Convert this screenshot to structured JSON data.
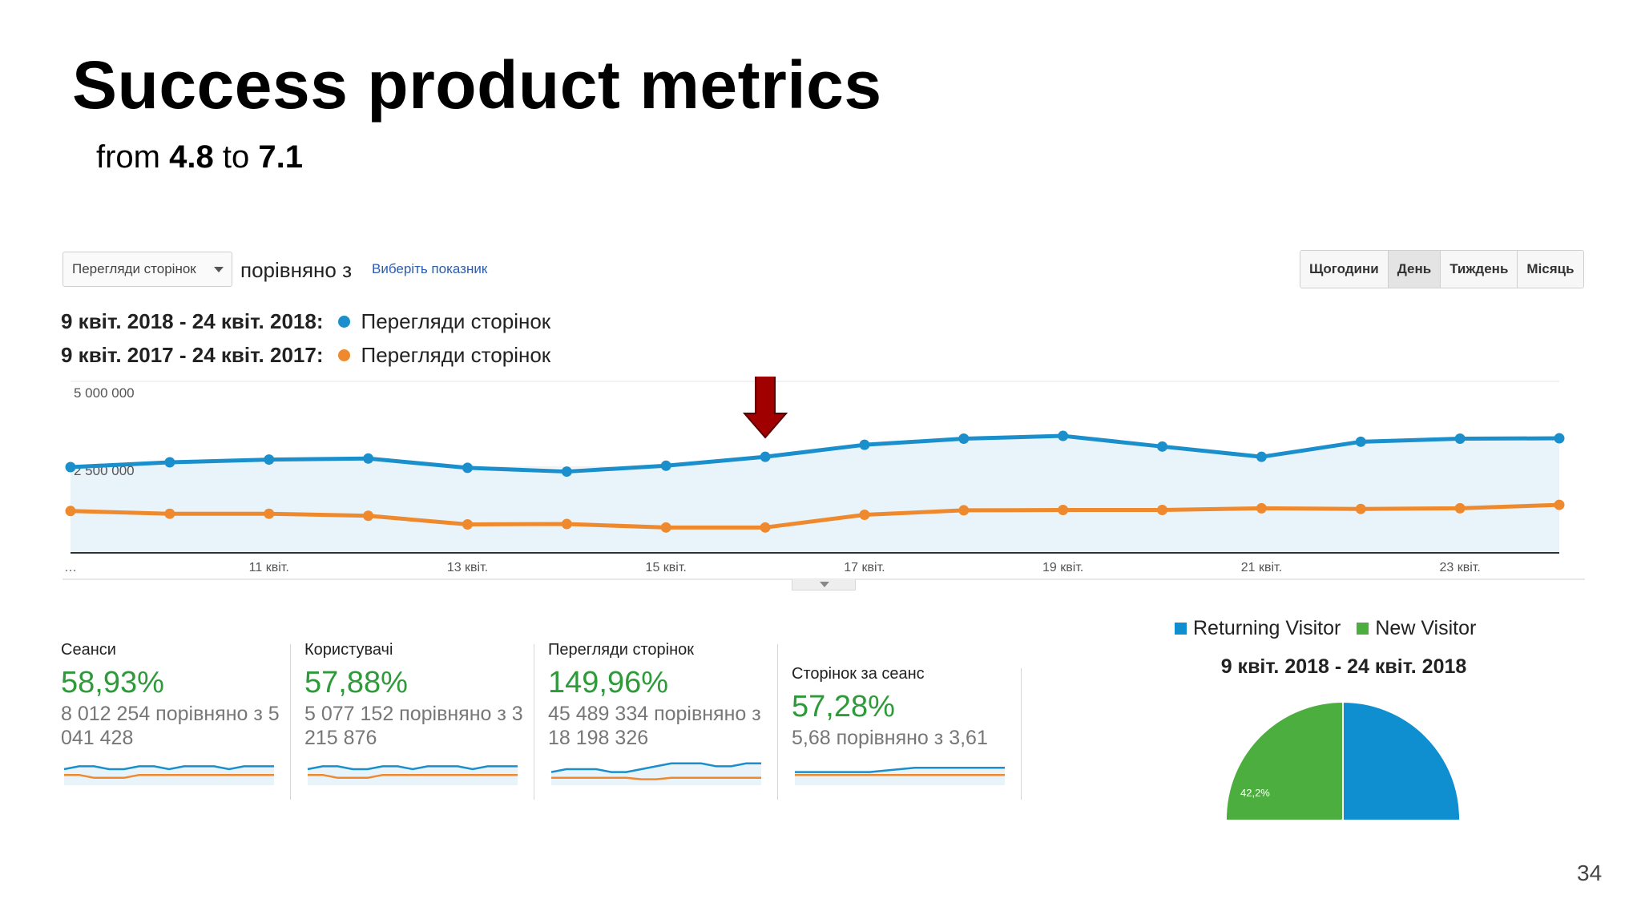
{
  "slide": {
    "title": "Success product metrics",
    "subtitle_from": "from",
    "subtitle_a": "4.8",
    "subtitle_to": "to",
    "subtitle_b": "7.1",
    "page_number": "34"
  },
  "toolbar": {
    "metric_select": "Перегляди сторінок",
    "compare_label": "порівняно з",
    "choose_metric_link": "Виберіть показник",
    "periods": [
      "Щогодини",
      "День",
      "Тиждень",
      "Місяць"
    ],
    "active_period": "День"
  },
  "legend": {
    "current_range": "9 квіт. 2018 - 24 квіт. 2018:",
    "current_name": "Перегляди сторінок",
    "previous_range": "9 квіт. 2017 - 24 квіт. 2017:",
    "previous_name": "Перегляди сторінок"
  },
  "colors": {
    "current": "#1a8fcb",
    "previous": "#ee8a2d",
    "area_fill": "#e9f3fa",
    "arrow": "#a00000",
    "positive_pct": "#2e9a3a",
    "new_visitor": "#4cae3f",
    "returning_visitor": "#0f8ed0"
  },
  "chart_data": {
    "type": "line",
    "x": [
      "9 квіт.",
      "10 квіт.",
      "11 квіт.",
      "12 квіт.",
      "13 квіт.",
      "14 квіт.",
      "15 квіт.",
      "16 квіт.",
      "17 квіт.",
      "18 квіт.",
      "19 квіт.",
      "20 квіт.",
      "21 квіт.",
      "22 квіт.",
      "23 квіт.",
      "24 квіт."
    ],
    "tick_labels": [
      "…",
      "11 квіт.",
      "13 квіт.",
      "15 квіт.",
      "17 квіт.",
      "19 квіт.",
      "21 квіт.",
      "23 квіт."
    ],
    "y_tick_labels": [
      "5 000 000",
      "2 500 000"
    ],
    "ylim": [
      0,
      5000000
    ],
    "series": [
      {
        "name": "9 квіт. 2018 - 24 квіт. 2018: Перегляди сторінок",
        "values": [
          2500000,
          2640000,
          2720000,
          2750000,
          2480000,
          2370000,
          2540000,
          2800000,
          3150000,
          3330000,
          3410000,
          3100000,
          2800000,
          3240000,
          3330000,
          3340000
        ]
      },
      {
        "name": "9 квіт. 2017 - 24 квіт. 2017: Перегляди сторінок",
        "values": [
          1220000,
          1140000,
          1140000,
          1080000,
          830000,
          840000,
          740000,
          740000,
          1110000,
          1240000,
          1250000,
          1250000,
          1300000,
          1280000,
          1300000,
          1400000
        ]
      }
    ],
    "area_under": "current",
    "grid": true,
    "annotation": "arrow pointing to 16 квіт."
  },
  "scorecards": [
    {
      "label": "Сеанси",
      "pct": "58,93%",
      "desc": "8 012 254 порівняно з 5 041 428",
      "spark_current": [
        5,
        6,
        6,
        5,
        5,
        6,
        6,
        5,
        6,
        6,
        6,
        5,
        6,
        6,
        6
      ],
      "spark_previous": [
        3,
        3,
        2,
        2,
        2,
        3,
        3,
        3,
        3,
        3,
        3,
        3,
        3,
        3,
        3
      ]
    },
    {
      "label": "Користувачі",
      "pct": "57,88%",
      "desc": "5 077 152 порівняно з 3 215 876",
      "spark_current": [
        5,
        6,
        6,
        5,
        5,
        6,
        6,
        5,
        6,
        6,
        6,
        5,
        6,
        6,
        6
      ],
      "spark_previous": [
        3,
        3,
        2,
        2,
        2,
        3,
        3,
        3,
        3,
        3,
        3,
        3,
        3,
        3,
        3
      ]
    },
    {
      "label": "Перегляди сторінок",
      "pct": "149,96%",
      "desc": "45 489 334 порівняно з 18 198 326",
      "spark_current": [
        4,
        5,
        5,
        5,
        4,
        4,
        5,
        6,
        7,
        7,
        7,
        6,
        6,
        7,
        7
      ],
      "spark_previous": [
        2,
        2,
        2,
        2,
        2,
        2,
        1.5,
        1.5,
        2,
        2,
        2,
        2,
        2,
        2,
        2
      ]
    },
    {
      "label": "Сторінок за сеанс",
      "pct": "57,28%",
      "desc": "5,68 порівняно з 3,61",
      "spark_current": [
        4,
        4,
        4,
        4,
        4,
        4,
        4.5,
        5,
        5.5,
        5.5,
        5.5,
        5.5,
        5.5,
        5.5,
        5.5
      ],
      "spark_previous": [
        3,
        3,
        3,
        3,
        3,
        3,
        3,
        3,
        3,
        3,
        3,
        3,
        3,
        3,
        3
      ]
    }
  ],
  "pie": {
    "legend_returning": "Returning Visitor",
    "legend_new": "New Visitor",
    "range": "9 квіт. 2018 - 24 квіт. 2018",
    "new_label": "42,2%",
    "chart_data": {
      "type": "pie",
      "slices": [
        {
          "name": "Returning Visitor",
          "value": 57.8
        },
        {
          "name": "New Visitor",
          "value": 42.2
        }
      ]
    }
  }
}
